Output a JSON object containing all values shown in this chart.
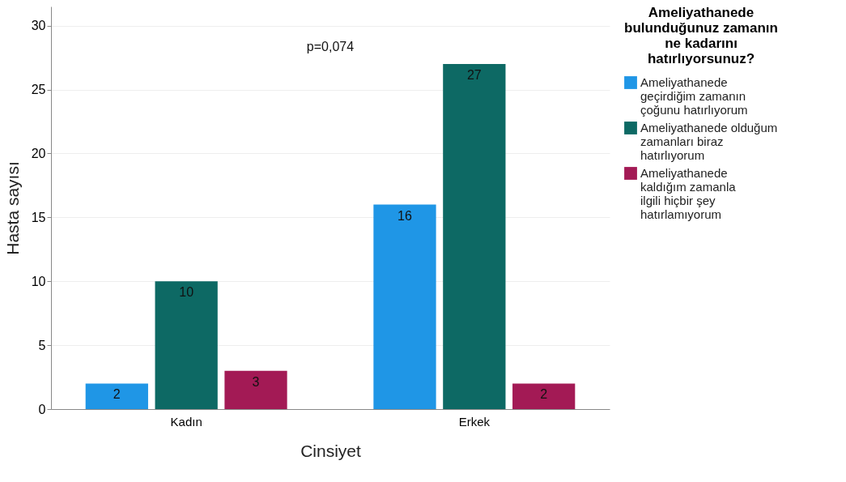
{
  "chart_data": {
    "type": "bar",
    "categories": [
      "Kadın",
      "Erkek"
    ],
    "series": [
      {
        "name": "Ameliyathanede geçirdiğim zamanın çoğunu hatırlıyorum",
        "color": "#1f96e6",
        "values": [
          2,
          16
        ]
      },
      {
        "name": "Ameliyathanede olduğum zamanları biraz hatırlıyorum",
        "color": "#0d6964",
        "values": [
          10,
          27
        ]
      },
      {
        "name": "Ameliyathanede kaldığım zamanla ilgili hiçbir şey hatırlamıyorum",
        "color": "#a31a55",
        "values": [
          3,
          2
        ]
      }
    ],
    "xlabel": "Cinsiyet",
    "ylabel": "Hasta sayısı",
    "legend_title": "Ameliyathanede bulunduğunuz zamanın ne kadarını hatırlıyorsunuz?",
    "ylim": [
      0,
      31.5
    ],
    "yticks": [
      0,
      5,
      10,
      15,
      20,
      25,
      30
    ],
    "grid": "y",
    "legend": "right",
    "data_labels": true,
    "annotations": [
      "p=0,074"
    ]
  }
}
